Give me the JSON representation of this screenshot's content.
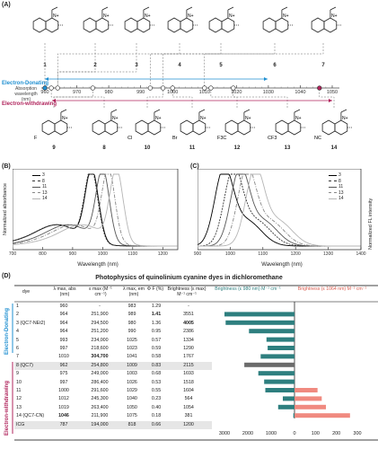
{
  "panel_a": {
    "label": "(A)",
    "donating_label": "Electron-Donating",
    "withdrawing_label": "Electron-withdrawing",
    "axis_label": [
      "Absorption",
      "wavelength",
      "(nm)"
    ],
    "ticks": [
      "960",
      "970",
      "980",
      "990",
      "1000",
      "1010",
      "1020",
      "1030",
      "1040",
      "1050"
    ],
    "top_structures": [
      "1",
      "2",
      "3",
      "4",
      "5",
      "6",
      "7"
    ],
    "bottom_structures": [
      "9",
      "8",
      "10",
      "11",
      "12",
      "13",
      "14"
    ],
    "substituents_bottom": [
      "F",
      "",
      "Cl",
      "Br",
      "F3C",
      "CF3",
      "NC"
    ],
    "colors": {
      "donating": "#1f8fd1",
      "withdrawing": "#b0245c"
    }
  },
  "panel_b": {
    "label": "(B)",
    "xlabel": "Wavelength (nm)",
    "ylabel": "Normalized absorbance",
    "xticks": [
      "700",
      "800",
      "900",
      "1000",
      "1100",
      "1200"
    ],
    "legend": [
      "3",
      "8",
      "11",
      "13",
      "14"
    ]
  },
  "panel_c": {
    "label": "(C)",
    "xlabel": "Wavelength (nm)",
    "ylabel": "Normalized FL intensity",
    "xticks": [
      "900",
      "1000",
      "1100",
      "1200",
      "1300",
      "1400"
    ],
    "legend": [
      "3",
      "8",
      "11",
      "13",
      "14"
    ]
  },
  "panel_d": {
    "label": "(D)",
    "title": "Photophysics of quinolinium cyanine dyes in dichloromethane",
    "headers": [
      "dye",
      "λ max, abs (nm)",
      "ε max (M⁻¹ cm⁻¹)",
      "λ max, em (nm)",
      "Φ F (%)",
      "Brightness (ε max) M⁻¹ cm⁻¹",
      "Brightness (ε 980 nm) M⁻¹ cm⁻¹",
      "Brightness (ε 1064 nm) M⁻¹ cm⁻¹"
    ],
    "donating_label": "Electron-Donating",
    "withdrawing_label": "Electron-withdrawing",
    "rows": [
      [
        "1",
        "960",
        "-",
        "983",
        "1.29",
        "-"
      ],
      [
        "2",
        "964",
        "251,900",
        "989",
        "1.41",
        "3551"
      ],
      [
        "3 (QC7-NEt2)",
        "964",
        "294,500",
        "980",
        "1.36",
        "4005"
      ],
      [
        "4",
        "964",
        "251,200",
        "990",
        "0.95",
        "2386"
      ],
      [
        "5",
        "993",
        "234,000",
        "1025",
        "0.57",
        "1334"
      ],
      [
        "6",
        "997",
        "218,600",
        "1023",
        "0.59",
        "1290"
      ],
      [
        "7",
        "1010",
        "304,700",
        "1041",
        "0.58",
        "1767"
      ],
      [
        "8 (QC7)",
        "962",
        "254,800",
        "1009",
        "0.83",
        "2115"
      ],
      [
        "9",
        "975",
        "249,000",
        "1003",
        "0.68",
        "1693"
      ],
      [
        "10",
        "997",
        "286,400",
        "1026",
        "0.53",
        "1518"
      ],
      [
        "11",
        "1000",
        "291,600",
        "1029",
        "0.55",
        "1604"
      ],
      [
        "12",
        "1012",
        "245,300",
        "1040",
        "0.23",
        "564"
      ],
      [
        "13",
        "1019",
        "263,400",
        "1050",
        "0.40",
        "1054"
      ],
      [
        "14 (QC7-CN)",
        "1046",
        "211,900",
        "1075",
        "0.18",
        "381"
      ],
      [
        "ICG",
        "787",
        "194,000",
        "818",
        "0.66",
        "1200"
      ]
    ],
    "bar_axis": [
      "3000",
      "2000",
      "1000",
      "0",
      "100",
      "200",
      "300"
    ]
  },
  "chart_data": [
    {
      "type": "line",
      "title": "",
      "xlabel": "Wavelength (nm)",
      "ylabel": "Normalized absorbance",
      "xlim": [
        700,
        1250
      ],
      "series": [
        {
          "name": "3",
          "peak": 964
        },
        {
          "name": "8",
          "peak": 962
        },
        {
          "name": "11",
          "peak": 1000
        },
        {
          "name": "13",
          "peak": 1019
        },
        {
          "name": "14",
          "peak": 1046
        }
      ]
    },
    {
      "type": "line",
      "title": "",
      "xlabel": "Wavelength (nm)",
      "ylabel": "Normalized FL intensity",
      "xlim": [
        900,
        1400
      ],
      "series": [
        {
          "name": "3",
          "peak": 980
        },
        {
          "name": "8",
          "peak": 1009
        },
        {
          "name": "11",
          "peak": 1029
        },
        {
          "name": "13",
          "peak": 1050
        },
        {
          "name": "14",
          "peak": 1075
        }
      ]
    },
    {
      "type": "bar",
      "title": "",
      "categories": [
        "1",
        "2",
        "3",
        "4",
        "5",
        "6",
        "7",
        "8",
        "9",
        "10",
        "11",
        "12",
        "13",
        "14",
        "ICG"
      ],
      "series": [
        {
          "name": "Brightness (ε 980 nm)",
          "values": [
            0,
            3000,
            2950,
            1950,
            1200,
            1150,
            1450,
            2150,
            1550,
            1300,
            1250,
            500,
            700,
            50,
            0
          ]
        },
        {
          "name": "Brightness (ε 1064 nm)",
          "values": [
            0,
            0,
            0,
            0,
            0,
            0,
            0,
            0,
            0,
            0,
            110,
            130,
            150,
            265,
            0
          ]
        }
      ]
    }
  ]
}
